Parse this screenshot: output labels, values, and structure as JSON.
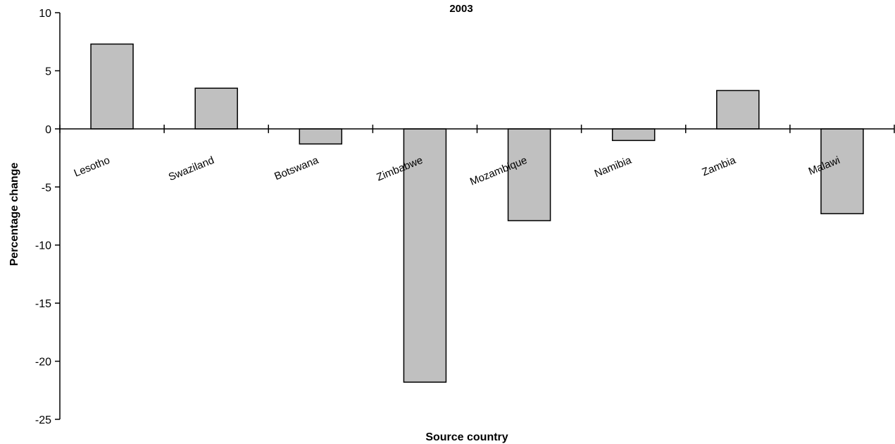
{
  "chart_data": {
    "type": "bar",
    "title": "2003",
    "xlabel": "Source country",
    "ylabel": "Percentage change",
    "categories": [
      "Lesotho",
      "Swaziland",
      "Botswana",
      "Zimbabwe",
      "Mozambique",
      "Namibia",
      "Zambia",
      "Malawi"
    ],
    "values": [
      7.3,
      3.5,
      -1.3,
      -21.8,
      -7.9,
      -1.0,
      3.3,
      -7.3
    ],
    "ylim": [
      -25,
      10
    ],
    "yticks": [
      10,
      5,
      0,
      -5,
      -10,
      -15,
      -20,
      -25
    ],
    "ytick_labels": [
      "10",
      "5",
      "0",
      "-5",
      "-10",
      "-15",
      "-20",
      "-25"
    ],
    "grid": false,
    "legend": "none",
    "colors": {
      "bar_fill": "#c0c0c0",
      "bar_stroke": "#000000",
      "axis": "#000000"
    }
  }
}
